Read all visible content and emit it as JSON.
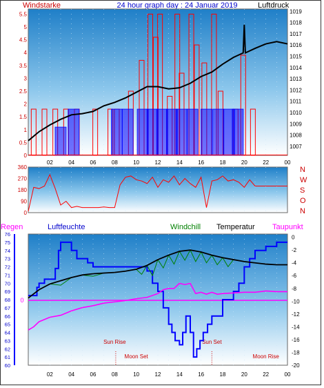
{
  "header": {
    "left_label": "Windstarke",
    "title": "24 hour graph day : 24 Januar 2019",
    "right_label": "Luftdruck"
  },
  "colors": {
    "wind": "#ff0000",
    "pressure": "#000000",
    "humidity": "#0000ff",
    "windchill": "#008000",
    "dewpoint": "#ff00ff",
    "rain": "#ff00ff",
    "sky_top": "#1f7fc8",
    "sky_bottom": "#ffffff",
    "label_red": "#cc0000",
    "label_blue": "#0000cc"
  },
  "chart_data": [
    {
      "type": "bar",
      "name": "wind_and_pressure",
      "left_axis": {
        "label": "Windstarke",
        "ticks": [
          "0",
          "0.5",
          "1",
          "1.5",
          "2",
          "2.5",
          "3",
          "3.5",
          "4",
          "4.5",
          "5",
          "5.5"
        ],
        "ylim": [
          0,
          5.7
        ]
      },
      "right_axis": {
        "label": "Luftdruck",
        "ticks": [
          "1007",
          "1008",
          "1009",
          "1010",
          "1011",
          "1012",
          "1013",
          "1014",
          "1015",
          "1016",
          "1017",
          "1018",
          "1019"
        ],
        "ylim": [
          1006.2,
          1019.2
        ]
      },
      "x_ticks": [
        "02",
        "04",
        "06",
        "08",
        "10",
        "12",
        "14",
        "16",
        "18",
        "20",
        "22",
        "00"
      ],
      "xlim": [
        0,
        24
      ],
      "series": [
        {
          "series_key": "pressure",
          "x": [
            0,
            1,
            2,
            3,
            4,
            5,
            6,
            7,
            8,
            9,
            10,
            11,
            12,
            13,
            14,
            15,
            16,
            17,
            18,
            19,
            19.9,
            20,
            20.1,
            21,
            22,
            23,
            24
          ],
          "values": [
            1007.5,
            1008.3,
            1008.9,
            1009.4,
            1009.8,
            1009.9,
            1010.1,
            1010.6,
            1010.9,
            1011.3,
            1011.8,
            1012.3,
            1012.3,
            1012.1,
            1012.2,
            1012.6,
            1013.2,
            1013.6,
            1014.3,
            1014.9,
            1015.3,
            1017.8,
            1015.3,
            1015.7,
            1016.1,
            1016.3,
            1016.1
          ]
        },
        {
          "series_key": "wind_gust",
          "x": [
            0.5,
            1.5,
            2.5,
            3.5,
            4.5,
            6.2,
            7.6,
            8.2,
            9.5,
            10.5,
            11.3,
            11.8,
            12.2,
            13.1,
            13.8,
            14.2,
            15.1,
            15.6,
            16.3,
            17.2,
            17.8,
            19.2,
            19.9,
            20.8
          ],
          "values": [
            1.8,
            1.8,
            1.8,
            1.8,
            1.8,
            1.8,
            1.8,
            1.8,
            2.5,
            3.7,
            5.5,
            4.6,
            5.5,
            2.3,
            5.5,
            3.2,
            5.5,
            4.3,
            3.6,
            5.5,
            2.5,
            1.8,
            3.9,
            1.8
          ]
        },
        {
          "series_key": "wind_avg",
          "x": [
            3,
            4.2,
            8.2,
            9.2,
            10.6,
            11.5,
            12.4,
            13.3,
            14.2,
            15.2,
            16.5,
            17.6,
            18.6,
            19.4
          ],
          "values": [
            1.1,
            1.8,
            1.8,
            1.8,
            1.8,
            1.8,
            1.8,
            1.8,
            1.8,
            1.8,
            1.8,
            1.8,
            1.8,
            1.8
          ]
        }
      ]
    },
    {
      "type": "line",
      "name": "wind_direction",
      "left_ticks": [
        "0",
        "90",
        "180",
        "270",
        "360"
      ],
      "ylim": [
        0,
        360
      ],
      "right_labels": [
        "N",
        "W",
        "S",
        "O",
        "N"
      ],
      "series": [
        {
          "series_key": "direction",
          "x": [
            0,
            0.5,
            1,
            1.5,
            2,
            2.5,
            3,
            3.5,
            4,
            4.5,
            5,
            6,
            6.5,
            7,
            7.5,
            8,
            8.5,
            9,
            9.5,
            10,
            10.5,
            11,
            11.5,
            12,
            12.5,
            13,
            13.5,
            14,
            14.5,
            15,
            15.5,
            16,
            16.5,
            17,
            17.5,
            18,
            18.5,
            19,
            19.5,
            20,
            20.5,
            21,
            22,
            23,
            24
          ],
          "values": [
            10,
            200,
            190,
            210,
            300,
            190,
            60,
            90,
            40,
            50,
            40,
            40,
            40,
            45,
            40,
            40,
            220,
            280,
            290,
            260,
            250,
            230,
            280,
            200,
            260,
            240,
            290,
            220,
            270,
            230,
            200,
            280,
            40,
            250,
            260,
            290,
            250,
            260,
            240,
            200,
            260,
            210,
            210,
            210,
            210
          ]
        }
      ]
    },
    {
      "type": "line",
      "name": "temperature_humidity",
      "legend": [
        "Regen",
        "Luftfeuchte",
        "Windchill",
        "Temperatur",
        "Taupunkt"
      ],
      "left_axis": {
        "ticks": [
          "60",
          "61",
          "62",
          "63",
          "64",
          "65",
          "66",
          "67",
          "68",
          "69",
          "70",
          "71",
          "72",
          "73",
          "74",
          "75",
          "76"
        ],
        "ylim": [
          60,
          76
        ]
      },
      "right_axis": {
        "ticks": [
          "-20",
          "-18",
          "-16",
          "-14",
          "-12",
          "-10",
          "-8",
          "-6",
          "-4",
          "-2",
          "0"
        ],
        "ylim": [
          -20,
          0.5
        ]
      },
      "rain_label": "0",
      "annotations": [
        {
          "text": "Sun Rise",
          "x": 8.0
        },
        {
          "text": "Moon Set",
          "x": 8.1
        },
        {
          "text": "Sun Set",
          "x": 17.0
        },
        {
          "text": "Moon Rise",
          "x": 17.0
        }
      ],
      "x_ticks": [
        "02",
        "04",
        "06",
        "08",
        "10",
        "12",
        "14",
        "16",
        "18",
        "20",
        "22",
        "00"
      ],
      "series": [
        {
          "series_key": "humidity",
          "x": [
            0,
            0.8,
            1,
            1.5,
            2,
            2.5,
            2.8,
            3,
            3.5,
            4,
            4.5,
            5,
            5.5,
            6,
            7,
            8,
            9,
            10,
            11,
            11.5,
            12,
            12.5,
            13,
            13.3,
            13.6,
            14,
            14.3,
            14.6,
            15,
            15.3,
            15.6,
            15.9,
            16.2,
            16.6,
            17,
            17.5,
            18,
            18.5,
            19,
            19.5,
            20,
            20.5,
            21,
            21.5,
            22,
            22.5,
            23,
            24
          ],
          "values": [
            68.5,
            69.5,
            70,
            70.5,
            70.5,
            71.8,
            74,
            75,
            75,
            74,
            73,
            73,
            72.5,
            72,
            72,
            72,
            72,
            72,
            71.5,
            70,
            69,
            67,
            65,
            64,
            63,
            62.5,
            64,
            66,
            64,
            61,
            62,
            63,
            64,
            65,
            66,
            66,
            68,
            68,
            69,
            70,
            72,
            73,
            74,
            74,
            74.5,
            74.5,
            75,
            75
          ]
        },
        {
          "series_key": "temperature",
          "x": [
            0,
            1,
            2,
            3,
            4,
            5,
            6,
            7,
            8,
            9,
            10,
            11,
            12,
            13,
            14,
            15,
            16,
            17,
            18,
            19,
            20,
            21,
            22,
            23,
            24
          ],
          "values": [
            -9.5,
            -8.2,
            -7.3,
            -6.8,
            -6.3,
            -5.9,
            -5.7,
            -5.6,
            -5.5,
            -5.3,
            -5.0,
            -4.4,
            -3.5,
            -2.8,
            -2.2,
            -2.0,
            -2.3,
            -2.8,
            -3.2,
            -3.5,
            -3.8,
            -4.0,
            -4.2,
            -4.3,
            -4.3
          ]
        },
        {
          "series_key": "windchill",
          "x": [
            0,
            1,
            2,
            3,
            4,
            5,
            6,
            7,
            8,
            9,
            10,
            10.5,
            11,
            11.5,
            12,
            12.5,
            13,
            13.5,
            14,
            14.5,
            15,
            15.5,
            16,
            16.5,
            17,
            17.5,
            18,
            18.5,
            19,
            20,
            21,
            22,
            23,
            24
          ],
          "values": [
            -9.5,
            -8.2,
            -7.3,
            -7.5,
            -6.3,
            -5.9,
            -6.1,
            -5.6,
            -5.5,
            -5.3,
            -5.0,
            -5.8,
            -4.4,
            -6.0,
            -3.5,
            -4.8,
            -2.8,
            -4.2,
            -2.2,
            -3.6,
            -2.0,
            -3.8,
            -2.3,
            -4.0,
            -2.8,
            -4.3,
            -3.2,
            -4.6,
            -3.5,
            -3.8,
            -4.0,
            -4.2,
            -4.3,
            -4.3
          ]
        },
        {
          "series_key": "dewpoint",
          "x": [
            0,
            0.5,
            1,
            2,
            3,
            4,
            5,
            6,
            7,
            8,
            9,
            10,
            11,
            12,
            12.5,
            13,
            13.5,
            14,
            14.5,
            15,
            15.5,
            16,
            16.5,
            17,
            17.5,
            18,
            19,
            20,
            21,
            22,
            23,
            24
          ],
          "values": [
            -14.5,
            -14,
            -13.2,
            -12.5,
            -12.2,
            -11.5,
            -11,
            -10.7,
            -10.3,
            -10.1,
            -9.9,
            -9.6,
            -9.4,
            -8.8,
            -8.2,
            -8.0,
            -8.0,
            -7.2,
            -7.4,
            -7.2,
            -8.8,
            -8.6,
            -8.9,
            -8.6,
            -8.9,
            -8.8,
            -8.7,
            -8.6,
            -8.6,
            -8.4,
            -8.5,
            -8.5
          ]
        },
        {
          "series_key": "rain",
          "x": [
            0,
            24
          ],
          "values": [
            0,
            0
          ]
        }
      ]
    }
  ]
}
